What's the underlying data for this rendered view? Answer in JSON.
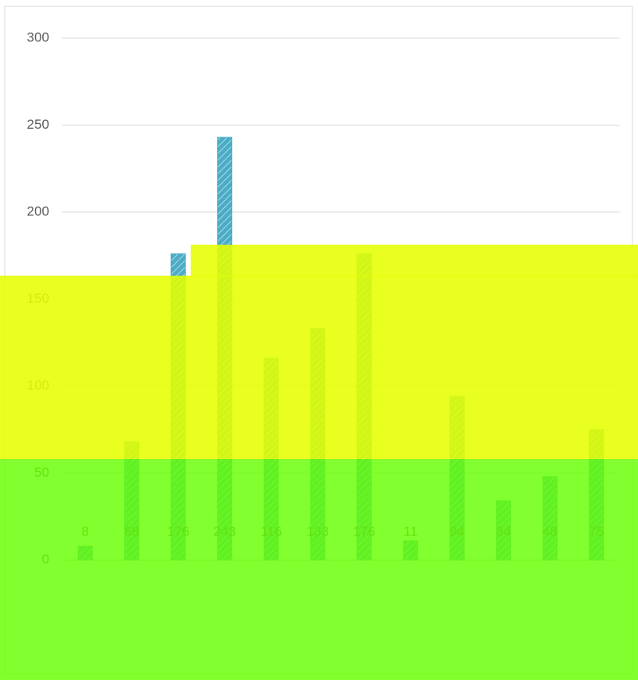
{
  "chart_data": {
    "type": "bar",
    "categories": [
      null,
      null,
      null,
      null,
      null,
      null,
      null,
      null,
      null,
      null,
      null,
      null
    ],
    "values": [
      8,
      68,
      176,
      243,
      116,
      133,
      176,
      11,
      94,
      34,
      48,
      75
    ],
    "value_labels": [
      "8",
      "68",
      "176",
      "243",
      "116",
      "133",
      "176",
      "11",
      "94",
      "34",
      "48",
      "75"
    ],
    "color": "#4bacc6",
    "ylim": [
      0,
      300
    ],
    "yticks": [
      0,
      50,
      100,
      150,
      200,
      250,
      300
    ],
    "grid": true
  }
}
